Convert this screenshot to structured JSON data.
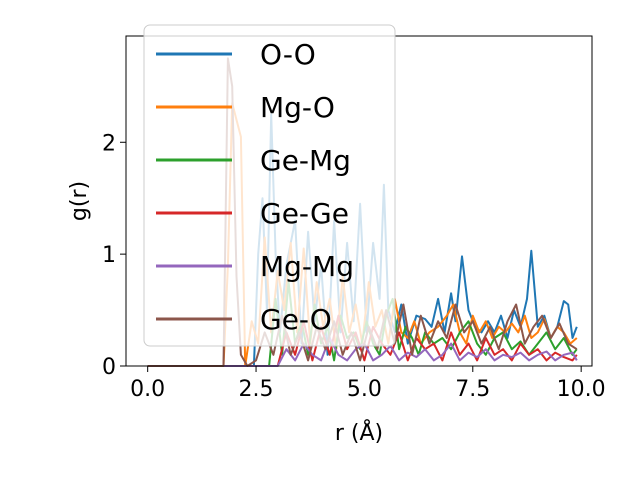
{
  "chart_data": {
    "type": "line",
    "xlabel": "r (Å)",
    "ylabel": "g(r)",
    "xlim": [
      -0.5,
      10.25
    ],
    "ylim": [
      0,
      2.95
    ],
    "xticks": [
      0.0,
      2.5,
      5.0,
      7.5,
      10.0
    ],
    "xtick_labels": [
      "0.0",
      "2.5",
      "5.0",
      "7.5",
      "10.0"
    ],
    "yticks": [
      0,
      1,
      2
    ],
    "ytick_labels": [
      "0",
      "1",
      "2"
    ],
    "grid": false,
    "legend_position": "top-left",
    "series": [
      {
        "name": "O-O",
        "color": "#1f77b4",
        "x": [
          0.0,
          1.8,
          2.2,
          2.45,
          2.55,
          2.65,
          2.75,
          2.85,
          2.95,
          3.05,
          3.2,
          3.4,
          3.55,
          3.7,
          3.85,
          4.0,
          4.15,
          4.3,
          4.45,
          4.6,
          4.75,
          4.9,
          5.05,
          5.2,
          5.35,
          5.45,
          5.55,
          5.7,
          5.85,
          6.0,
          6.2,
          6.4,
          6.55,
          6.7,
          6.85,
          7.0,
          7.1,
          7.25,
          7.4,
          7.55,
          7.7,
          7.85,
          8.0,
          8.15,
          8.3,
          8.45,
          8.6,
          8.75,
          8.85,
          9.0,
          9.15,
          9.3,
          9.45,
          9.6,
          9.7,
          9.8,
          9.9
        ],
        "y": [
          0.0,
          0.0,
          0.0,
          0.0,
          1.0,
          1.5,
          0.5,
          2.25,
          1.0,
          0.3,
          0.9,
          1.3,
          0.2,
          1.2,
          0.4,
          0.9,
          0.1,
          1.3,
          0.3,
          1.1,
          0.4,
          1.45,
          0.3,
          1.1,
          0.6,
          1.62,
          0.5,
          0.3,
          0.55,
          0.2,
          0.45,
          0.42,
          0.35,
          0.6,
          0.3,
          0.65,
          0.4,
          0.98,
          0.5,
          0.35,
          0.3,
          0.4,
          0.3,
          0.45,
          0.25,
          0.5,
          0.35,
          0.6,
          1.03,
          0.35,
          0.45,
          0.25,
          0.35,
          0.58,
          0.55,
          0.25,
          0.35
        ]
      },
      {
        "name": "Mg-O",
        "color": "#ff7f0e",
        "x": [
          0.0,
          1.75,
          1.85,
          1.95,
          2.05,
          2.15,
          2.25,
          2.4,
          2.55,
          2.7,
          2.85,
          3.0,
          3.15,
          3.3,
          3.45,
          3.6,
          3.75,
          3.9,
          4.05,
          4.2,
          4.35,
          4.5,
          4.65,
          4.8,
          4.95,
          5.1,
          5.25,
          5.4,
          5.55,
          5.7,
          5.85,
          6.0,
          6.15,
          6.3,
          6.5,
          6.7,
          6.9,
          7.05,
          7.2,
          7.35,
          7.5,
          7.65,
          7.8,
          7.95,
          8.1,
          8.25,
          8.4,
          8.55,
          8.7,
          8.85,
          9.0,
          9.15,
          9.3,
          9.45,
          9.6,
          9.75,
          9.9
        ],
        "y": [
          0.0,
          0.0,
          0.9,
          2.35,
          2.2,
          2.05,
          0.0,
          0.4,
          0.2,
          1.15,
          0.3,
          0.85,
          0.5,
          1.1,
          0.3,
          1.05,
          0.2,
          0.75,
          0.35,
          0.6,
          0.15,
          0.8,
          0.3,
          0.55,
          0.2,
          0.75,
          0.35,
          0.5,
          0.2,
          0.6,
          0.3,
          0.25,
          0.4,
          0.2,
          0.3,
          0.35,
          0.45,
          0.55,
          0.3,
          0.2,
          0.45,
          0.3,
          0.4,
          0.25,
          0.35,
          0.3,
          0.38,
          0.3,
          0.45,
          0.25,
          0.3,
          0.42,
          0.25,
          0.35,
          0.3,
          0.2,
          0.25
        ]
      },
      {
        "name": "Ge-Mg",
        "color": "#2ca02c",
        "x": [
          0.0,
          2.8,
          2.95,
          3.1,
          3.25,
          3.4,
          3.55,
          3.7,
          3.85,
          4.0,
          4.15,
          4.3,
          4.45,
          4.6,
          4.75,
          4.9,
          5.05,
          5.2,
          5.35,
          5.5,
          5.65,
          5.8,
          5.95,
          6.1,
          6.25,
          6.4,
          6.6,
          6.8,
          7.0,
          7.2,
          7.4,
          7.6,
          7.8,
          8.0,
          8.2,
          8.4,
          8.6,
          8.8,
          9.0,
          9.2,
          9.4,
          9.6,
          9.8,
          9.9
        ],
        "y": [
          0.0,
          0.0,
          0.6,
          0.1,
          0.75,
          0.2,
          0.4,
          0.1,
          0.55,
          0.2,
          0.35,
          0.05,
          0.45,
          0.25,
          0.3,
          0.15,
          0.4,
          0.2,
          0.1,
          0.45,
          0.6,
          0.15,
          0.35,
          0.25,
          0.1,
          0.3,
          0.2,
          0.25,
          0.15,
          0.3,
          0.4,
          0.2,
          0.1,
          0.25,
          0.3,
          0.15,
          0.22,
          0.1,
          0.2,
          0.3,
          0.15,
          0.25,
          0.1,
          0.15
        ]
      },
      {
        "name": "Ge-Ge",
        "color": "#d62728",
        "x": [
          0.0,
          3.0,
          3.2,
          3.4,
          3.6,
          3.8,
          4.0,
          4.2,
          4.4,
          4.6,
          4.8,
          5.0,
          5.2,
          5.4,
          5.6,
          5.8,
          6.0,
          6.2,
          6.4,
          6.6,
          6.8,
          7.0,
          7.2,
          7.4,
          7.6,
          7.8,
          8.0,
          8.2,
          8.4,
          8.6,
          8.8,
          9.0,
          9.2,
          9.4,
          9.6,
          9.8,
          9.9
        ],
        "y": [
          0.0,
          0.0,
          0.3,
          0.1,
          0.4,
          0.05,
          0.35,
          0.1,
          0.45,
          0.15,
          0.3,
          0.05,
          0.35,
          0.2,
          0.1,
          0.3,
          0.05,
          0.25,
          0.15,
          0.2,
          0.05,
          0.3,
          0.1,
          0.2,
          0.05,
          0.25,
          0.1,
          0.15,
          0.05,
          0.2,
          0.1,
          0.15,
          0.05,
          0.12,
          0.08,
          0.05,
          0.1
        ]
      },
      {
        "name": "Mg-Mg",
        "color": "#9467bd",
        "x": [
          0.0,
          3.0,
          3.2,
          3.4,
          3.6,
          3.8,
          4.0,
          4.2,
          4.4,
          4.6,
          4.8,
          5.0,
          5.2,
          5.4,
          5.6,
          5.8,
          6.0,
          6.2,
          6.4,
          6.6,
          6.8,
          7.0,
          7.2,
          7.4,
          7.6,
          7.8,
          8.0,
          8.2,
          8.4,
          8.6,
          8.8,
          9.0,
          9.2,
          9.4,
          9.6,
          9.8,
          9.9
        ],
        "y": [
          0.0,
          0.0,
          0.15,
          0.05,
          0.2,
          0.1,
          0.05,
          0.25,
          0.1,
          0.05,
          0.15,
          0.2,
          0.05,
          0.1,
          0.18,
          0.05,
          0.12,
          0.08,
          0.15,
          0.05,
          0.1,
          0.2,
          0.05,
          0.12,
          0.08,
          0.15,
          0.05,
          0.1,
          0.08,
          0.12,
          0.05,
          0.1,
          0.13,
          0.05,
          0.1,
          0.12,
          0.05
        ]
      },
      {
        "name": "Ge-O",
        "color": "#8c564b",
        "x": [
          0.0,
          1.75,
          1.85,
          1.95,
          2.05,
          2.15,
          2.3,
          2.5,
          2.7,
          2.9,
          3.1,
          3.3,
          3.5,
          3.7,
          3.9,
          4.1,
          4.3,
          4.5,
          4.7,
          4.9,
          5.1,
          5.3,
          5.5,
          5.7,
          5.9,
          6.1,
          6.3,
          6.5,
          6.7,
          6.9,
          7.1,
          7.3,
          7.5,
          7.7,
          7.9,
          8.1,
          8.3,
          8.5,
          8.7,
          8.9,
          9.1,
          9.3,
          9.5,
          9.7,
          9.9
        ],
        "y": [
          0.0,
          0.0,
          2.75,
          2.5,
          0.8,
          0.1,
          0.0,
          0.05,
          0.3,
          0.1,
          0.45,
          0.1,
          0.3,
          0.05,
          0.35,
          0.15,
          0.4,
          0.1,
          0.3,
          0.05,
          0.35,
          0.15,
          0.5,
          0.2,
          0.55,
          0.1,
          0.45,
          0.2,
          0.4,
          0.25,
          0.55,
          0.3,
          0.4,
          0.2,
          0.35,
          0.15,
          0.4,
          0.55,
          0.2,
          0.35,
          0.45,
          0.25,
          0.38,
          0.2,
          0.15
        ]
      }
    ]
  }
}
